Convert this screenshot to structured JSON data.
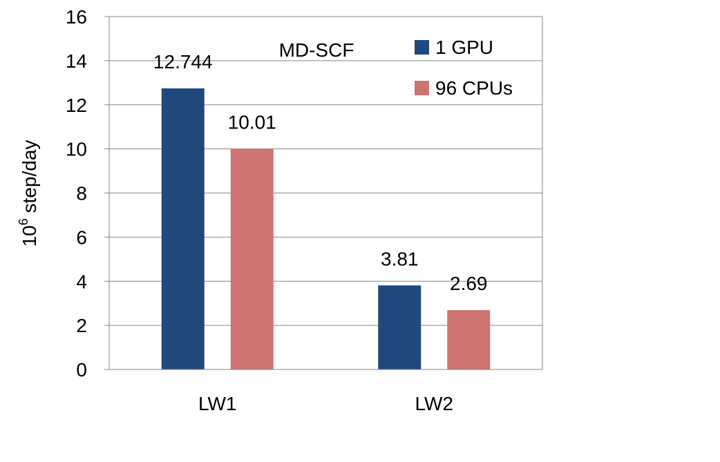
{
  "chart_data": {
    "type": "bar",
    "title": "MD-SCF",
    "ylabel_base": "10",
    "ylabel_exp": "6",
    "ylabel_rest": " step/day",
    "xlabel": "",
    "categories": [
      "LW1",
      "LW2"
    ],
    "series": [
      {
        "name": "1 GPU",
        "values": [
          12.744,
          3.81
        ],
        "labels": [
          "12.744",
          "3.81"
        ],
        "color": "#1F497D"
      },
      {
        "name": "96 CPUs",
        "values": [
          10.01,
          2.69
        ],
        "labels": [
          "10.01",
          "2.69"
        ],
        "color": "#CD7371"
      }
    ],
    "ylim": [
      0,
      16
    ],
    "yticks": [
      0,
      2,
      4,
      6,
      8,
      10,
      12,
      14,
      16
    ],
    "grid": true,
    "legend_position": "top-right"
  }
}
